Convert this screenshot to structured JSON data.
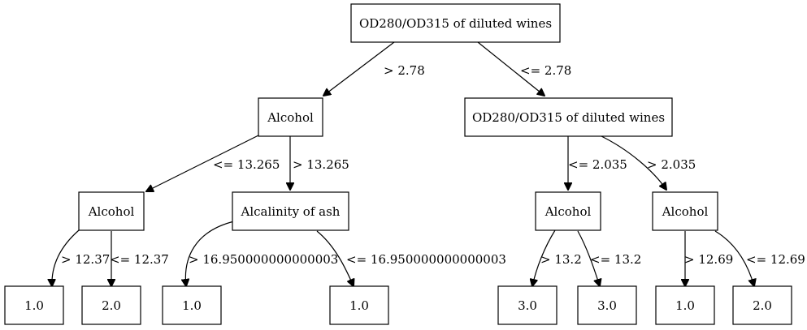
{
  "tree": {
    "nodes": {
      "root": "OD280/OD315 of diluted wines",
      "alcohol_1": "Alcohol",
      "od_2": "OD280/OD315 of diluted wines",
      "alcohol_3": "Alcohol",
      "alcalinity": "Alcalinity of ash",
      "alcohol_4": "Alcohol",
      "alcohol_5": "Alcohol",
      "leaf_1": "1.0",
      "leaf_2": "2.0",
      "leaf_3": "1.0",
      "leaf_4": "1.0",
      "leaf_5": "3.0",
      "leaf_6": "3.0",
      "leaf_7": "1.0",
      "leaf_8": "2.0"
    },
    "edges": {
      "root_left": "> 2.78",
      "root_right": "<= 2.78",
      "alcohol1_left": "<= 13.265",
      "alcohol1_right": "> 13.265",
      "od2_left": "<= 2.035",
      "od2_right": "> 2.035",
      "alcohol3_left": "> 12.37",
      "alcohol3_right": "<= 12.37",
      "alcalinity_left": "> 16.950000000000003",
      "alcalinity_right": "<= 16.950000000000003",
      "alcohol4_left": "> 13.2",
      "alcohol4_right": "<= 13.2",
      "alcohol5_left": "> 12.69",
      "alcohol5_right": "<= 12.69"
    }
  }
}
